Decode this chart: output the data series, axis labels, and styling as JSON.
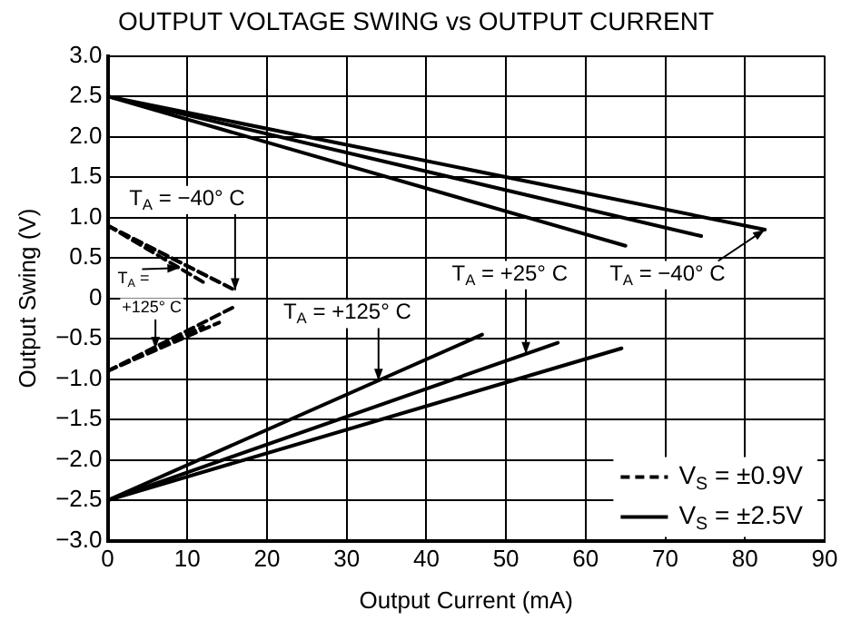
{
  "chart_data": {
    "type": "line",
    "title": "OUTPUT VOLTAGE SWING vs OUTPUT CURRENT",
    "xlabel": "Output Current (mA)",
    "ylabel": "Output Swing (V)",
    "xlim": [
      0,
      90
    ],
    "xticks": [
      0,
      10,
      20,
      30,
      40,
      50,
      60,
      70,
      80,
      90
    ],
    "ylim": [
      -3,
      3
    ],
    "yticks": [
      {
        "value": 3,
        "label": "3.0"
      },
      {
        "value": 2.5,
        "label": "2.5"
      },
      {
        "value": 2,
        "label": "2.0"
      },
      {
        "value": 1.5,
        "label": "1.5"
      },
      {
        "value": 1,
        "label": "1.0"
      },
      {
        "value": 0.5,
        "label": "0.5"
      },
      {
        "value": 0,
        "label": "0"
      },
      {
        "value": -0.5,
        "label": "−0.5"
      },
      {
        "value": -1,
        "label": "−1.0"
      },
      {
        "value": -1.5,
        "label": "−1.5"
      },
      {
        "value": -2,
        "label": "−2.0"
      },
      {
        "value": -2.5,
        "label": "−2.5"
      },
      {
        "value": -3,
        "label": "−3.0"
      }
    ],
    "grid": true,
    "legend": "bottom right",
    "marker": "none",
    "series": [
      {
        "name": "V$_{S}$ = ±0.9V",
        "color": "#000000",
        "line_style": "dashed",
        "x": [
          0,
          12
        ],
        "values": [
          0.9,
          0.2
        ]
      },
      {
        "color": "#000000",
        "line_style": "dashed",
        "x": [
          0,
          14
        ],
        "values": [
          0.9,
          0.2
        ]
      },
      {
        "color": "#000000",
        "line_style": "dashed",
        "x": [
          0,
          16
        ],
        "values": [
          0.9,
          0.1
        ]
      },
      {
        "color": "#000000",
        "line_style": "dashed",
        "x": [
          0,
          12
        ],
        "values": [
          -0.9,
          -0.35
        ]
      },
      {
        "color": "#000000",
        "line_style": "dashed",
        "x": [
          0,
          14
        ],
        "values": [
          -0.9,
          -0.3
        ]
      },
      {
        "color": "#000000",
        "line_style": "dashed",
        "x": [
          0,
          16
        ],
        "values": [
          -0.9,
          -0.1
        ]
      },
      {
        "name": "V$_{S}$ = ±2.5V",
        "color": "#000000",
        "line_style": "solid",
        "x": [
          0,
          65
        ],
        "values": [
          2.5,
          0.65
        ]
      },
      {
        "color": "#000000",
        "line_style": "solid",
        "x": [
          0,
          74.5
        ],
        "values": [
          2.5,
          0.77
        ]
      },
      {
        "color": "#000000",
        "line_style": "solid",
        "x": [
          0,
          82.5
        ],
        "values": [
          2.5,
          0.85
        ]
      },
      {
        "color": "#000000",
        "line_style": "solid",
        "x": [
          0,
          47
        ],
        "values": [
          -2.5,
          -0.45
        ]
      },
      {
        "color": "#000000",
        "line_style": "solid",
        "x": [
          0,
          56.5
        ],
        "values": [
          -2.5,
          -0.55
        ]
      },
      {
        "color": "#000000",
        "line_style": "solid",
        "x": [
          0,
          64.5
        ],
        "values": [
          -2.5,
          -0.62
        ]
      }
    ],
    "annotations": [
      {
        "text": "T$_{A}$ = −40° C",
        "x": 16,
        "y": 0.1
      },
      {
        "text": "T$_{A}$ =",
        "x": 9,
        "y": 0.375
      },
      {
        "text": "+125° C",
        "x": 6,
        "y": -0.625
      },
      {
        "text": "T$_{A}$ = +125° C",
        "x": 34,
        "y": -1.02
      },
      {
        "text": "T$_{A}$ = +25° C",
        "x": 52.5,
        "y": -0.69
      },
      {
        "text": "T$_{A}$ = −40° C",
        "x": 82.5,
        "y": 0.85
      }
    ]
  }
}
